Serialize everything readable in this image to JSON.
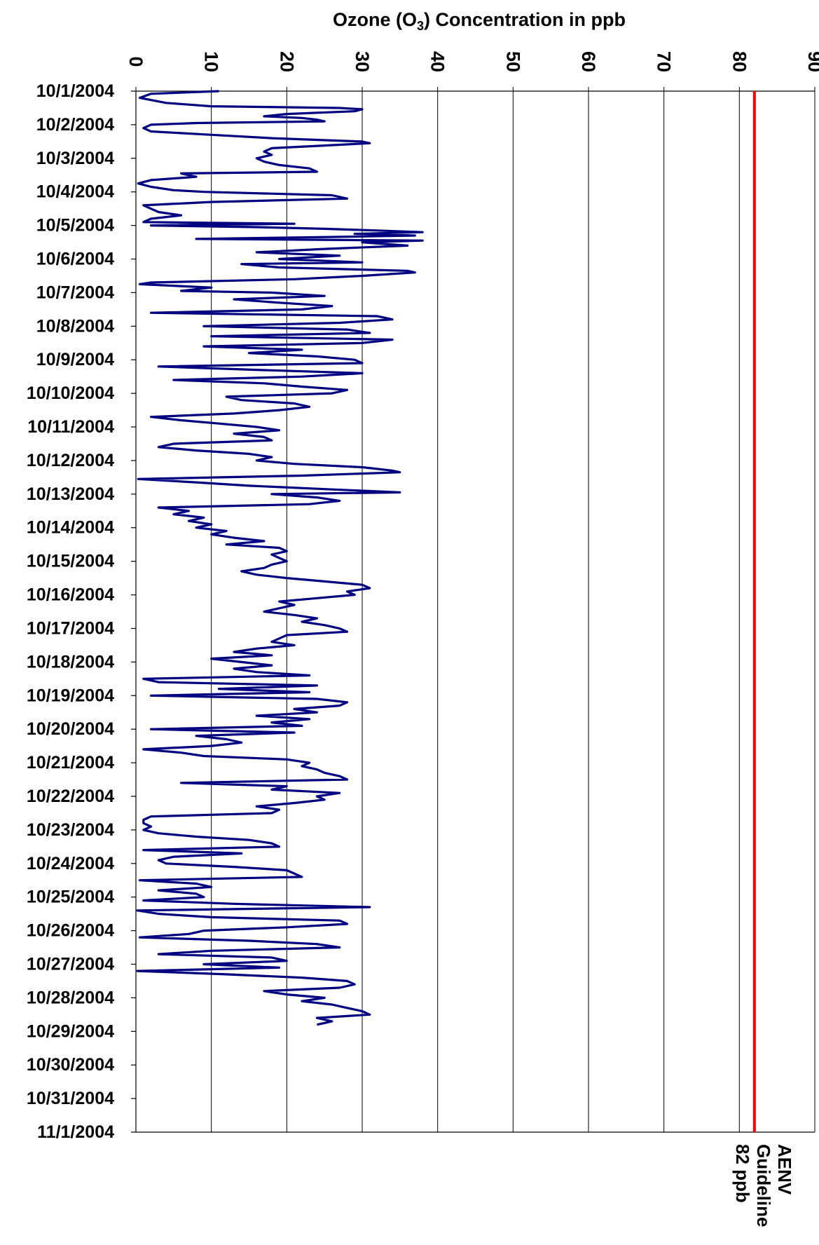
{
  "chart_data": {
    "type": "line",
    "orientation": "rotated-horizontal",
    "title": "Ozone (O",
    "title_sub": "3",
    "title_suffix": ") Concentration in ppb",
    "value_axis": {
      "min": 0,
      "max": 90,
      "ticks": [
        "0",
        "10",
        "20",
        "30",
        "40",
        "50",
        "60",
        "70",
        "80",
        "90"
      ],
      "gridlines": true
    },
    "date_axis": {
      "ticks": [
        "10/1/2004",
        "10/2/2004",
        "10/3/2004",
        "10/4/2004",
        "10/5/2004",
        "10/6/2004",
        "10/7/2004",
        "10/8/2004",
        "10/9/2004",
        "10/10/2004",
        "10/11/2004",
        "10/12/2004",
        "10/13/2004",
        "10/14/2004",
        "10/15/2004",
        "10/16/2004",
        "10/17/2004",
        "10/18/2004",
        "10/19/2004",
        "10/20/2004",
        "10/21/2004",
        "10/22/2004",
        "10/23/2004",
        "10/24/2004",
        "10/25/2004",
        "10/26/2004",
        "10/27/2004",
        "10/28/2004",
        "10/29/2004",
        "10/30/2004",
        "10/31/2004",
        "11/1/2004"
      ]
    },
    "guideline": {
      "value": 82,
      "color": "#ff0000",
      "label_lines": [
        "AENV",
        "Guideline",
        "82 ppb"
      ]
    },
    "series": [
      {
        "color": "#000080",
        "points": [
          [
            0.0,
            11
          ],
          [
            0.08,
            2
          ],
          [
            0.2,
            0.5
          ],
          [
            0.35,
            4
          ],
          [
            0.45,
            10
          ],
          [
            0.5,
            27
          ],
          [
            0.54,
            30
          ],
          [
            0.6,
            29
          ],
          [
            0.68,
            20
          ],
          [
            0.75,
            17
          ],
          [
            0.8,
            22
          ],
          [
            0.85,
            24
          ],
          [
            0.9,
            25
          ],
          [
            0.95,
            8
          ],
          [
            1.0,
            2
          ],
          [
            1.1,
            1
          ],
          [
            1.2,
            2
          ],
          [
            1.3,
            10
          ],
          [
            1.4,
            18
          ],
          [
            1.5,
            30
          ],
          [
            1.55,
            31
          ],
          [
            1.62,
            25
          ],
          [
            1.7,
            18
          ],
          [
            1.8,
            17
          ],
          [
            1.9,
            18
          ],
          [
            2.0,
            16
          ],
          [
            2.1,
            17
          ],
          [
            2.2,
            19
          ],
          [
            2.3,
            23
          ],
          [
            2.4,
            24
          ],
          [
            2.45,
            6
          ],
          [
            2.55,
            8
          ],
          [
            2.65,
            2
          ],
          [
            2.75,
            0.3
          ],
          [
            2.85,
            2
          ],
          [
            2.95,
            5
          ],
          [
            3.0,
            9
          ],
          [
            3.1,
            26
          ],
          [
            3.2,
            28
          ],
          [
            3.3,
            10
          ],
          [
            3.4,
            1
          ],
          [
            3.5,
            2
          ],
          [
            3.6,
            3
          ],
          [
            3.7,
            6
          ],
          [
            3.8,
            2
          ],
          [
            3.9,
            1
          ],
          [
            3.95,
            21
          ],
          [
            4.0,
            2
          ],
          [
            4.05,
            16
          ],
          [
            4.1,
            25
          ],
          [
            4.15,
            32
          ],
          [
            4.2,
            38
          ],
          [
            4.25,
            29
          ],
          [
            4.3,
            37
          ],
          [
            4.35,
            24
          ],
          [
            4.4,
            8
          ],
          [
            4.45,
            38
          ],
          [
            4.5,
            30
          ],
          [
            4.6,
            36
          ],
          [
            4.7,
            25
          ],
          [
            4.8,
            16
          ],
          [
            4.9,
            27
          ],
          [
            5.0,
            19
          ],
          [
            5.1,
            30
          ],
          [
            5.15,
            14
          ],
          [
            5.25,
            19
          ],
          [
            5.35,
            36
          ],
          [
            5.4,
            37
          ],
          [
            5.5,
            30
          ],
          [
            5.6,
            21
          ],
          [
            5.7,
            2
          ],
          [
            5.75,
            0.5
          ],
          [
            5.85,
            10
          ],
          [
            5.95,
            6
          ],
          [
            6.0,
            18
          ],
          [
            6.1,
            25
          ],
          [
            6.2,
            13
          ],
          [
            6.3,
            19
          ],
          [
            6.4,
            26
          ],
          [
            6.5,
            22
          ],
          [
            6.6,
            2
          ],
          [
            6.7,
            32
          ],
          [
            6.8,
            34
          ],
          [
            6.9,
            27
          ],
          [
            7.0,
            9
          ],
          [
            7.1,
            28
          ],
          [
            7.2,
            31
          ],
          [
            7.3,
            10
          ],
          [
            7.4,
            34
          ],
          [
            7.5,
            30
          ],
          [
            7.6,
            9
          ],
          [
            7.7,
            22
          ],
          [
            7.8,
            15
          ],
          [
            7.9,
            24
          ],
          [
            8.0,
            29
          ],
          [
            8.1,
            30
          ],
          [
            8.2,
            3
          ],
          [
            8.3,
            16
          ],
          [
            8.4,
            30
          ],
          [
            8.5,
            22
          ],
          [
            8.6,
            5
          ],
          [
            8.7,
            17
          ],
          [
            8.8,
            22
          ],
          [
            8.9,
            28
          ],
          [
            9.0,
            26
          ],
          [
            9.1,
            12
          ],
          [
            9.2,
            14
          ],
          [
            9.3,
            21
          ],
          [
            9.4,
            23
          ],
          [
            9.5,
            19
          ],
          [
            9.6,
            13
          ],
          [
            9.7,
            2
          ],
          [
            9.8,
            6
          ],
          [
            9.9,
            11
          ],
          [
            10.0,
            16
          ],
          [
            10.1,
            19
          ],
          [
            10.2,
            13
          ],
          [
            10.3,
            17
          ],
          [
            10.4,
            18
          ],
          [
            10.5,
            5
          ],
          [
            10.6,
            3
          ],
          [
            10.7,
            8
          ],
          [
            10.8,
            15
          ],
          [
            10.9,
            18
          ],
          [
            11.0,
            16
          ],
          [
            11.1,
            21
          ],
          [
            11.2,
            30
          ],
          [
            11.3,
            34
          ],
          [
            11.35,
            35
          ],
          [
            11.45,
            22
          ],
          [
            11.55,
            0.3
          ],
          [
            11.65,
            8
          ],
          [
            11.75,
            15
          ],
          [
            11.85,
            25
          ],
          [
            11.95,
            35
          ],
          [
            12.0,
            18
          ],
          [
            12.1,
            24
          ],
          [
            12.2,
            27
          ],
          [
            12.3,
            23
          ],
          [
            12.4,
            3
          ],
          [
            12.5,
            7
          ],
          [
            12.6,
            5
          ],
          [
            12.7,
            9
          ],
          [
            12.8,
            7
          ],
          [
            12.9,
            10
          ],
          [
            13.0,
            8
          ],
          [
            13.1,
            12
          ],
          [
            13.2,
            10
          ],
          [
            13.3,
            13
          ],
          [
            13.4,
            17
          ],
          [
            13.5,
            12
          ],
          [
            13.6,
            19
          ],
          [
            13.7,
            20
          ],
          [
            13.8,
            18
          ],
          [
            13.9,
            19
          ],
          [
            14.0,
            20
          ],
          [
            14.1,
            18
          ],
          [
            14.2,
            17
          ],
          [
            14.3,
            14
          ],
          [
            14.4,
            16
          ],
          [
            14.5,
            20
          ],
          [
            14.6,
            25
          ],
          [
            14.7,
            30
          ],
          [
            14.8,
            31
          ],
          [
            14.9,
            28
          ],
          [
            15.0,
            29
          ],
          [
            15.1,
            24
          ],
          [
            15.2,
            19
          ],
          [
            15.3,
            21
          ],
          [
            15.4,
            19
          ],
          [
            15.5,
            17
          ],
          [
            15.6,
            21
          ],
          [
            15.7,
            24
          ],
          [
            15.8,
            22
          ],
          [
            15.9,
            25
          ],
          [
            16.0,
            27
          ],
          [
            16.1,
            28
          ],
          [
            16.2,
            20
          ],
          [
            16.3,
            19
          ],
          [
            16.4,
            18
          ],
          [
            16.5,
            21
          ],
          [
            16.6,
            16
          ],
          [
            16.7,
            13
          ],
          [
            16.8,
            18
          ],
          [
            16.9,
            10
          ],
          [
            17.0,
            14
          ],
          [
            17.1,
            18
          ],
          [
            17.2,
            13
          ],
          [
            17.3,
            16
          ],
          [
            17.4,
            23
          ],
          [
            17.5,
            1
          ],
          [
            17.6,
            3
          ],
          [
            17.7,
            24
          ],
          [
            17.8,
            11
          ],
          [
            17.9,
            23
          ],
          [
            18.0,
            2
          ],
          [
            18.1,
            24
          ],
          [
            18.2,
            28
          ],
          [
            18.3,
            27
          ],
          [
            18.4,
            21
          ],
          [
            18.5,
            24
          ],
          [
            18.6,
            16
          ],
          [
            18.7,
            23
          ],
          [
            18.8,
            18
          ],
          [
            18.9,
            22
          ],
          [
            19.0,
            2
          ],
          [
            19.1,
            21
          ],
          [
            19.2,
            8
          ],
          [
            19.3,
            12
          ],
          [
            19.4,
            14
          ],
          [
            19.5,
            10
          ],
          [
            19.6,
            1
          ],
          [
            19.7,
            6
          ],
          [
            19.8,
            9
          ],
          [
            19.9,
            20
          ],
          [
            20.0,
            23
          ],
          [
            20.1,
            22
          ],
          [
            20.2,
            24
          ],
          [
            20.3,
            25
          ],
          [
            20.4,
            27
          ],
          [
            20.5,
            28
          ],
          [
            20.6,
            6
          ],
          [
            20.7,
            20
          ],
          [
            20.8,
            18
          ],
          [
            20.9,
            27
          ],
          [
            21.0,
            24
          ],
          [
            21.1,
            25
          ],
          [
            21.2,
            21
          ],
          [
            21.3,
            16
          ],
          [
            21.4,
            19
          ],
          [
            21.5,
            18
          ],
          [
            21.6,
            2
          ],
          [
            21.7,
            1
          ],
          [
            21.8,
            1
          ],
          [
            21.9,
            2
          ],
          [
            22.0,
            1
          ],
          [
            22.1,
            3
          ],
          [
            22.2,
            8
          ],
          [
            22.3,
            15
          ],
          [
            22.4,
            18
          ],
          [
            22.5,
            19
          ],
          [
            22.6,
            1
          ],
          [
            22.7,
            14
          ],
          [
            22.8,
            5
          ],
          [
            22.9,
            3
          ],
          [
            23.0,
            4
          ],
          [
            23.1,
            13
          ],
          [
            23.2,
            20
          ],
          [
            23.3,
            21
          ],
          [
            23.4,
            22
          ],
          [
            23.5,
            0.5
          ],
          [
            23.6,
            8
          ],
          [
            23.7,
            10
          ],
          [
            23.8,
            3
          ],
          [
            23.9,
            8
          ],
          [
            24.0,
            9
          ],
          [
            24.1,
            1
          ],
          [
            24.2,
            13
          ],
          [
            24.3,
            31
          ],
          [
            24.4,
            0.2
          ],
          [
            24.5,
            3
          ],
          [
            24.6,
            10
          ],
          [
            24.7,
            27
          ],
          [
            24.8,
            28
          ],
          [
            24.9,
            20
          ],
          [
            25.0,
            9
          ],
          [
            25.1,
            7
          ],
          [
            25.2,
            0.5
          ],
          [
            25.3,
            15
          ],
          [
            25.4,
            24
          ],
          [
            25.5,
            27
          ],
          [
            25.6,
            10
          ],
          [
            25.7,
            3
          ],
          [
            25.8,
            18
          ],
          [
            25.9,
            20
          ],
          [
            26.0,
            9
          ],
          [
            26.1,
            19
          ],
          [
            26.2,
            0.2
          ],
          [
            26.3,
            12
          ],
          [
            26.4,
            22
          ],
          [
            26.5,
            28
          ],
          [
            26.6,
            29
          ],
          [
            26.7,
            27
          ],
          [
            26.8,
            17
          ],
          [
            26.9,
            20
          ],
          [
            27.0,
            25
          ],
          [
            27.1,
            22
          ],
          [
            27.2,
            26
          ],
          [
            27.3,
            28
          ],
          [
            27.4,
            30
          ],
          [
            27.5,
            31
          ],
          [
            27.6,
            24
          ],
          [
            27.7,
            26
          ],
          [
            27.8,
            24
          ]
        ]
      }
    ]
  }
}
